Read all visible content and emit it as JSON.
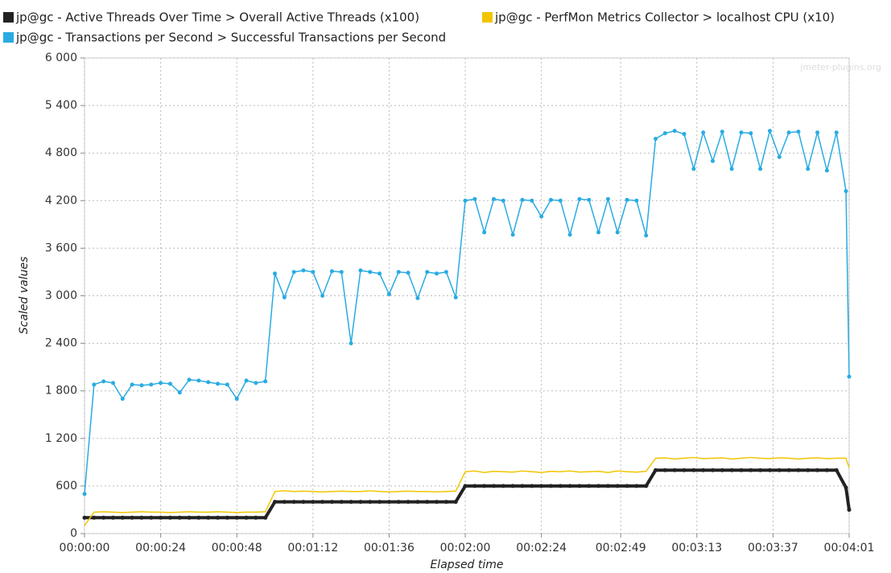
{
  "chart_data": {
    "type": "line",
    "watermark": "jmeter-plugins.org",
    "x_label": "Elapsed time",
    "y_label": "Scaled values",
    "x": [
      0,
      3,
      6,
      9,
      12,
      15,
      18,
      21,
      24,
      27,
      30,
      33,
      36,
      39,
      42,
      45,
      48,
      51,
      54,
      57,
      60,
      63,
      66,
      69,
      72,
      75,
      78,
      81,
      84,
      87,
      90,
      93,
      96,
      99,
      102,
      105,
      108,
      111,
      114,
      117,
      120,
      123,
      126,
      129,
      132,
      135,
      138,
      141,
      144,
      147,
      150,
      153,
      156,
      159,
      162,
      165,
      168,
      171,
      174,
      177,
      180,
      183,
      186,
      189,
      192,
      195,
      198,
      201,
      204,
      207,
      210,
      213,
      216,
      219,
      222,
      225,
      228,
      231,
      234,
      237,
      240,
      241
    ],
    "series": [
      {
        "name": "jp@gc - Active Threads Over Time > Overall Active Threads (x100)",
        "color": "#222222",
        "width": 4,
        "markers": true,
        "values": [
          200,
          200,
          200,
          200,
          200,
          200,
          200,
          200,
          200,
          200,
          200,
          200,
          200,
          200,
          200,
          200,
          200,
          200,
          200,
          200,
          400,
          400,
          400,
          400,
          400,
          400,
          400,
          400,
          400,
          400,
          400,
          400,
          400,
          400,
          400,
          400,
          400,
          400,
          400,
          400,
          600,
          600,
          600,
          600,
          600,
          600,
          600,
          600,
          600,
          600,
          600,
          600,
          600,
          600,
          600,
          600,
          600,
          600,
          600,
          600,
          800,
          800,
          800,
          800,
          800,
          800,
          800,
          800,
          800,
          800,
          800,
          800,
          800,
          800,
          800,
          800,
          800,
          800,
          800,
          800,
          580,
          300
        ]
      },
      {
        "name": "jp@gc - PerfMon Metrics Collector > localhost CPU (x10)",
        "color": "#f2c500",
        "width": 1.5,
        "markers": false,
        "values": [
          100,
          270,
          275,
          270,
          265,
          270,
          275,
          270,
          270,
          265,
          270,
          275,
          270,
          270,
          275,
          270,
          265,
          270,
          270,
          275,
          530,
          540,
          530,
          535,
          530,
          525,
          530,
          535,
          530,
          530,
          540,
          530,
          525,
          530,
          535,
          530,
          530,
          525,
          530,
          535,
          780,
          790,
          770,
          785,
          780,
          775,
          790,
          780,
          770,
          785,
          780,
          790,
          775,
          780,
          785,
          770,
          790,
          780,
          775,
          785,
          950,
          955,
          940,
          950,
          960,
          945,
          950,
          955,
          940,
          950,
          960,
          950,
          945,
          955,
          950,
          940,
          950,
          955,
          945,
          950,
          950,
          830
        ]
      },
      {
        "name": "jp@gc - Transactions per Second > Successful Transactions per Second",
        "color": "#29abe2",
        "width": 1.5,
        "markers": true,
        "values": [
          500,
          1880,
          1920,
          1900,
          1700,
          1880,
          1870,
          1880,
          1900,
          1890,
          1780,
          1940,
          1930,
          1910,
          1890,
          1880,
          1700,
          1930,
          1900,
          1920,
          3280,
          2980,
          3300,
          3320,
          3300,
          3000,
          3310,
          3300,
          2400,
          3320,
          3300,
          3280,
          3020,
          3300,
          3290,
          2970,
          3300,
          3280,
          3300,
          2980,
          4200,
          4220,
          3800,
          4220,
          4200,
          3770,
          4210,
          4200,
          4000,
          4210,
          4200,
          3770,
          4220,
          4210,
          3800,
          4220,
          3800,
          4210,
          4200,
          3760,
          4980,
          5050,
          5080,
          5040,
          4600,
          5060,
          4700,
          5070,
          4600,
          5060,
          5050,
          4600,
          5080,
          4750,
          5060,
          5070,
          4600,
          5060,
          4580,
          5060,
          4320,
          1980
        ]
      }
    ],
    "xlim": [
      0,
      241
    ],
    "xticks": [
      {
        "value": 0,
        "label": "00:00:00"
      },
      {
        "value": 24,
        "label": "00:00:24"
      },
      {
        "value": 48,
        "label": "00:00:48"
      },
      {
        "value": 72,
        "label": "00:01:12"
      },
      {
        "value": 96,
        "label": "00:01:36"
      },
      {
        "value": 120,
        "label": "00:02:00"
      },
      {
        "value": 144,
        "label": "00:02:24"
      },
      {
        "value": 169,
        "label": "00:02:49"
      },
      {
        "value": 193,
        "label": "00:03:13"
      },
      {
        "value": 217,
        "label": "00:03:37"
      },
      {
        "value": 241,
        "label": "00:04:01"
      }
    ],
    "ylim": [
      0,
      6000
    ],
    "yticks": [
      0,
      600,
      {
        "value": 1200,
        "label": "1 200"
      },
      {
        "value": 1800,
        "label": "1 800"
      },
      {
        "value": 2400,
        "label": "2 400"
      },
      {
        "value": 3000,
        "label": "3 000"
      },
      {
        "value": 3600,
        "label": "3 600"
      },
      {
        "value": 4200,
        "label": "4 200"
      },
      {
        "value": 4800,
        "label": "4 800"
      },
      {
        "value": 5400,
        "label": "5 400"
      },
      {
        "value": 6000,
        "label": "6 000"
      }
    ],
    "grid": true
  }
}
